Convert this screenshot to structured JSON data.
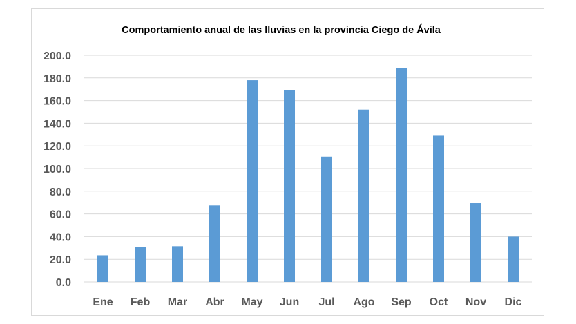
{
  "chart_data": {
    "type": "bar",
    "title": "Comportamiento anual de las lluvias en la provincia Ciego de Ávila",
    "xlabel": "",
    "ylabel": "",
    "categories": [
      "Ene",
      "Feb",
      "Mar",
      "Abr",
      "May",
      "Jun",
      "Jul",
      "Ago",
      "Sep",
      "Oct",
      "Nov",
      "Dic"
    ],
    "values": [
      23.5,
      30.5,
      31.5,
      67.5,
      178.0,
      169.0,
      110.5,
      152.0,
      189.0,
      129.0,
      69.5,
      40.0
    ],
    "ylim": [
      0,
      200
    ],
    "y_ticks": [
      "0.0",
      "20.0",
      "40.0",
      "60.0",
      "80.0",
      "100.0",
      "120.0",
      "140.0",
      "160.0",
      "180.0",
      "200.0"
    ],
    "grid": true,
    "legend": "none",
    "bar_color": "#5b9bd5",
    "grid_color": "#d9d9d9"
  }
}
